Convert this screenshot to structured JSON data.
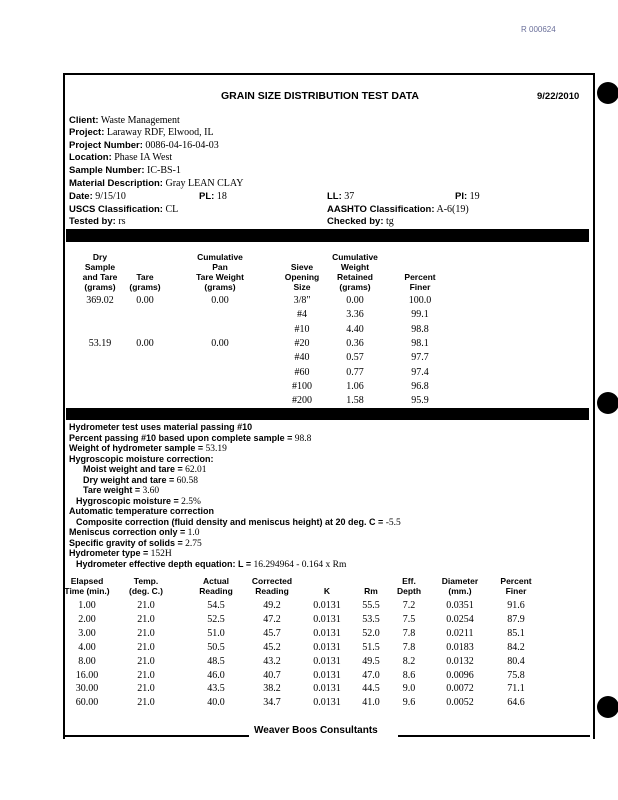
{
  "stamp": "R 000624",
  "title": "GRAIN SIZE DISTRIBUTION TEST DATA",
  "report_date": "9/22/2010",
  "info": {
    "client_label": "Client:",
    "client": "Waste Management",
    "project_label": "Project:",
    "project": "Laraway RDF, Elwood, IL",
    "project_number_label": "Project Number:",
    "project_number": "0086-04-16-04-03",
    "location_label": "Location:",
    "location": "Phase IA West",
    "sample_number_label": "Sample Number:",
    "sample_number": "IC-BS-1",
    "material_label": "Material Description:",
    "material": "Gray LEAN CLAY",
    "date_label": "Date:",
    "date": "9/15/10",
    "pl_label": "PL:",
    "pl": "18",
    "ll_label": "LL:",
    "ll": "37",
    "pi_label": "PI:",
    "pi": "19",
    "uscs_label": "USCS Classification:",
    "uscs": "CL",
    "aashto_label": "AASHTO Classification:",
    "aashto": "A-6(19)",
    "tested_label": "Tested by:",
    "tested": "rs",
    "checked_label": "Checked by:",
    "checked": "tg"
  },
  "sieve": {
    "headers": [
      "Dry\nSample\nand Tare\n(grams)",
      "Tare\n(grams)",
      "Cumulative\nPan\nTare Weight\n(grams)",
      "Sieve\nOpening\nSize",
      "Cumulative\nWeight\nRetained\n(grams)",
      "Percent\nFiner"
    ],
    "rows": [
      [
        "369.02",
        "0.00",
        "0.00",
        "3/8\"",
        "0.00",
        "100.0"
      ],
      [
        "",
        "",
        "",
        "#4",
        "3.36",
        "99.1"
      ],
      [
        "",
        "",
        "",
        "#10",
        "4.40",
        "98.8"
      ],
      [
        "53.19",
        "0.00",
        "0.00",
        "#20",
        "0.36",
        "98.1"
      ],
      [
        "",
        "",
        "",
        "#40",
        "0.57",
        "97.7"
      ],
      [
        "",
        "",
        "",
        "#60",
        "0.77",
        "97.4"
      ],
      [
        "",
        "",
        "",
        "#100",
        "1.06",
        "96.8"
      ],
      [
        "",
        "",
        "",
        "#200",
        "1.58",
        "95.9"
      ]
    ]
  },
  "hydrometer_notes": [
    {
      "label": "Hydrometer test uses material passing #10",
      "value": "",
      "indent": 0
    },
    {
      "label": "Percent passing #10 based upon complete sample =",
      "value": "98.8",
      "indent": 0
    },
    {
      "label": "Weight of hydrometer sample =",
      "value": "53.19",
      "indent": 0
    },
    {
      "label": "Hygroscopic moisture correction:",
      "value": "",
      "indent": 0
    },
    {
      "label": "Moist weight and tare =",
      "value": "62.01",
      "indent": 2
    },
    {
      "label": "Dry weight and tare =",
      "value": "60.58",
      "indent": 2
    },
    {
      "label": "Tare weight =",
      "value": "3.60",
      "indent": 2
    },
    {
      "label": "Hygroscopic moisture =",
      "value": "2.5%",
      "indent": 1
    },
    {
      "label": "Automatic temperature correction",
      "value": "",
      "indent": 0
    },
    {
      "label": "Composite correction (fluid density and meniscus height) at 20 deg. C =",
      "value": "-5.5",
      "indent": 1
    },
    {
      "label": "Meniscus correction only =",
      "value": "1.0",
      "indent": 0
    },
    {
      "label": "Specific gravity of solids =",
      "value": "2.75",
      "indent": 0
    },
    {
      "label": "Hydrometer type =",
      "value": "152H",
      "indent": 0
    },
    {
      "label": "Hydrometer effective depth equation: L =",
      "value": "16.294964 - 0.164 x Rm",
      "indent": 1
    }
  ],
  "hydro": {
    "headers": [
      "Elapsed\nTime (min.)",
      "Temp.\n(deg. C.)",
      "Actual\nReading",
      "Corrected\nReading",
      "K",
      "Rm",
      "Eff.\nDepth",
      "Diameter\n(mm.)",
      "Percent\nFiner"
    ],
    "rows": [
      [
        "1.00",
        "21.0",
        "54.5",
        "49.2",
        "0.0131",
        "55.5",
        "7.2",
        "0.0351",
        "91.6"
      ],
      [
        "2.00",
        "21.0",
        "52.5",
        "47.2",
        "0.0131",
        "53.5",
        "7.5",
        "0.0254",
        "87.9"
      ],
      [
        "3.00",
        "21.0",
        "51.0",
        "45.7",
        "0.0131",
        "52.0",
        "7.8",
        "0.0211",
        "85.1"
      ],
      [
        "4.00",
        "21.0",
        "50.5",
        "45.2",
        "0.0131",
        "51.5",
        "7.8",
        "0.0183",
        "84.2"
      ],
      [
        "8.00",
        "21.0",
        "48.5",
        "43.2",
        "0.0131",
        "49.5",
        "8.2",
        "0.0132",
        "80.4"
      ],
      [
        "16.00",
        "21.0",
        "46.0",
        "40.7",
        "0.0131",
        "47.0",
        "8.6",
        "0.0096",
        "75.8"
      ],
      [
        "30.00",
        "21.0",
        "43.5",
        "38.2",
        "0.0131",
        "44.5",
        "9.0",
        "0.0072",
        "71.1"
      ],
      [
        "60.00",
        "21.0",
        "40.0",
        "34.7",
        "0.0131",
        "41.0",
        "9.6",
        "0.0052",
        "64.6"
      ]
    ]
  },
  "footer": "Weaver Boos Consultants"
}
